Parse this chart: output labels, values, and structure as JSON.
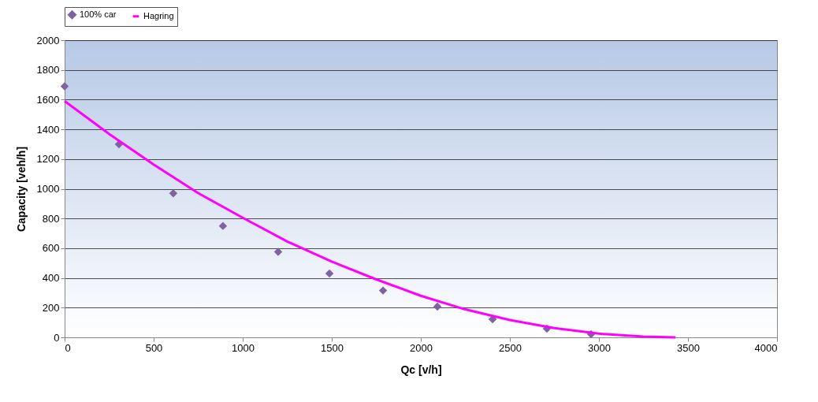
{
  "chart_data": {
    "type": "scatter",
    "xlabel": "Qc [v/h]",
    "ylabel": "Capacity [veh/h]",
    "xlim": [
      0,
      4000
    ],
    "xticks": [
      0,
      500,
      1000,
      1500,
      2000,
      2500,
      3000,
      3500,
      4000
    ],
    "ylim": [
      0,
      2000
    ],
    "yticks": [
      0,
      200,
      400,
      600,
      800,
      1000,
      1200,
      1400,
      1600,
      1800,
      2000
    ],
    "grid": "y",
    "legend": "top",
    "series": [
      {
        "name": "100% car",
        "type": "scatter",
        "marker": "diamond",
        "color": "#7f63a0",
        "x": [
          0,
          305,
          610,
          889,
          1199,
          1487,
          1788,
          2093,
          2403,
          2708,
          2956
        ],
        "values": [
          1690,
          1300,
          970,
          750,
          575,
          430,
          315,
          207,
          122,
          58,
          21
        ]
      },
      {
        "name": "Hagring",
        "type": "line",
        "marker": "none",
        "line_style": "solid",
        "color": "#ff00ff",
        "x": [
          0,
          250,
          500,
          750,
          1000,
          1250,
          1500,
          1750,
          2000,
          2250,
          2500,
          2750,
          3000,
          3250,
          3430
        ],
        "values": [
          1590,
          1369,
          1163,
          971,
          805,
          645,
          510,
          390,
          280,
          188,
          117,
          62,
          25,
          5,
          0
        ]
      }
    ]
  }
}
